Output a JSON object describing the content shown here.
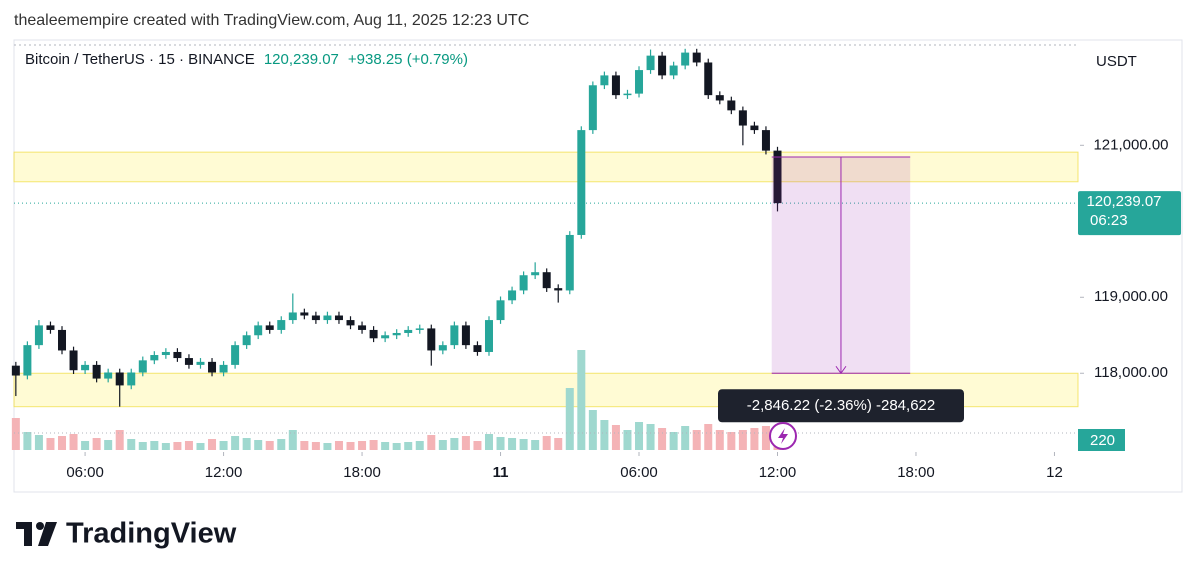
{
  "chart_data": {
    "type": "candlestick",
    "watermark": "thealeemempire created with TradingView.com, Aug 11, 2025 12:23 UTC",
    "symbol": "Bitcoin / TetherUS · 15 · BINANCE",
    "change": "+938.25 (+0.79%)",
    "currency": "USDT",
    "countdown": "06:23",
    "logo": "TradingView",
    "last_price": {
      "value": 120239.07,
      "label": "120,239.07"
    },
    "up_color": "#26a69a",
    "down_color": "#131722",
    "volume_up_color": "#9fd8cf",
    "volume_down_color": "#f4b3b6",
    "x": [
      3,
      3.5,
      4,
      4.5,
      5,
      5.5,
      6,
      6.5,
      7,
      7.5,
      8,
      8.5,
      9,
      9.5,
      10,
      10.5,
      11,
      11.5,
      12,
      12.5,
      13,
      13.5,
      14,
      14.5,
      15,
      15.5,
      16,
      16.5,
      17,
      17.5,
      18,
      18.5,
      19,
      19.5,
      20,
      20.5,
      21,
      21.5,
      22,
      22.5,
      23,
      23.5,
      24,
      24.5,
      25,
      25.5,
      26,
      26.5,
      27,
      27.5,
      28,
      28.5,
      29,
      29.5,
      30,
      30.5,
      31,
      31.5,
      32,
      32.5,
      33,
      33.5,
      34,
      34.5,
      35,
      35.5,
      36
    ],
    "ohlc": [
      [
        118100,
        118150,
        117700,
        117970
      ],
      [
        117970,
        118420,
        117920,
        118370
      ],
      [
        118370,
        118700,
        118320,
        118630
      ],
      [
        118630,
        118680,
        118520,
        118570
      ],
      [
        118570,
        118620,
        118250,
        118300
      ],
      [
        118300,
        118350,
        117990,
        118040
      ],
      [
        118040,
        118160,
        117990,
        118110
      ],
      [
        118110,
        118160,
        117880,
        117930
      ],
      [
        117930,
        118060,
        117880,
        118010
      ],
      [
        118010,
        118060,
        117560,
        117840
      ],
      [
        117840,
        118060,
        117790,
        118010
      ],
      [
        118010,
        118220,
        117960,
        118170
      ],
      [
        118170,
        118290,
        118120,
        118240
      ],
      [
        118240,
        118330,
        118190,
        118280
      ],
      [
        118280,
        118330,
        118150,
        118200
      ],
      [
        118200,
        118250,
        118060,
        118110
      ],
      [
        118110,
        118200,
        118060,
        118150
      ],
      [
        118150,
        118200,
        117960,
        118010
      ],
      [
        118010,
        118160,
        117960,
        118110
      ],
      [
        118110,
        118420,
        118060,
        118370
      ],
      [
        118370,
        118550,
        118320,
        118500
      ],
      [
        118500,
        118680,
        118450,
        118630
      ],
      [
        118630,
        118680,
        118520,
        118570
      ],
      [
        118570,
        118750,
        118520,
        118700
      ],
      [
        118700,
        119050,
        118650,
        118800
      ],
      [
        118800,
        118850,
        118710,
        118760
      ],
      [
        118760,
        118810,
        118650,
        118700
      ],
      [
        118700,
        118810,
        118650,
        118760
      ],
      [
        118760,
        118810,
        118650,
        118700
      ],
      [
        118700,
        118750,
        118580,
        118630
      ],
      [
        118630,
        118680,
        118520,
        118570
      ],
      [
        118570,
        118620,
        118410,
        118460
      ],
      [
        118460,
        118550,
        118410,
        118500
      ],
      [
        118500,
        118580,
        118450,
        118530
      ],
      [
        118530,
        118620,
        118480,
        118570
      ],
      [
        118570,
        118640,
        118520,
        118590
      ],
      [
        118590,
        118640,
        118100,
        118300
      ],
      [
        118300,
        118420,
        118250,
        118370
      ],
      [
        118370,
        118680,
        118320,
        118630
      ],
      [
        118630,
        118680,
        118320,
        118370
      ],
      [
        118370,
        118420,
        118230,
        118280
      ],
      [
        118280,
        118750,
        118230,
        118700
      ],
      [
        118700,
        119010,
        118650,
        118960
      ],
      [
        118960,
        119140,
        118910,
        119090
      ],
      [
        119090,
        119340,
        119040,
        119290
      ],
      [
        119290,
        119460,
        119240,
        119330
      ],
      [
        119330,
        119380,
        119070,
        119120
      ],
      [
        119120,
        119170,
        118930,
        119090
      ],
      [
        119090,
        119870,
        119040,
        119820
      ],
      [
        119820,
        121250,
        119770,
        121200
      ],
      [
        121200,
        121840,
        121150,
        121790
      ],
      [
        121790,
        121970,
        121740,
        121920
      ],
      [
        121920,
        121970,
        121610,
        121660
      ],
      [
        121660,
        121730,
        121610,
        121680
      ],
      [
        121680,
        122040,
        121630,
        121990
      ],
      [
        121990,
        122260,
        121940,
        122180
      ],
      [
        122180,
        122230,
        121870,
        121920
      ],
      [
        121920,
        122100,
        121870,
        122050
      ],
      [
        122050,
        122270,
        122000,
        122220
      ],
      [
        122220,
        122270,
        122040,
        122090
      ],
      [
        122090,
        122140,
        121610,
        121660
      ],
      [
        121660,
        121710,
        121540,
        121590
      ],
      [
        121590,
        121640,
        121410,
        121460
      ],
      [
        121460,
        121510,
        121000,
        121260
      ],
      [
        121260,
        121310,
        121150,
        121200
      ],
      [
        121200,
        121250,
        120880,
        120930
      ],
      [
        120930,
        120980,
        120130,
        120239.07
      ]
    ],
    "volume": [
      320,
      180,
      150,
      120,
      140,
      160,
      90,
      120,
      100,
      200,
      110,
      80,
      90,
      70,
      80,
      90,
      70,
      110,
      90,
      140,
      120,
      100,
      90,
      110,
      200,
      90,
      80,
      70,
      90,
      80,
      90,
      100,
      80,
      70,
      80,
      90,
      150,
      100,
      120,
      140,
      90,
      160,
      130,
      120,
      110,
      100,
      140,
      120,
      620,
      1000,
      400,
      300,
      250,
      200,
      280,
      260,
      220,
      180,
      240,
      200,
      260,
      200,
      180,
      200,
      220,
      240,
      220
    ],
    "xlim": [
      2.92,
      49.02
    ],
    "xticks": [
      {
        "value": 6,
        "label": "06:00"
      },
      {
        "value": 12,
        "label": "12:00"
      },
      {
        "value": 18,
        "label": "18:00"
      },
      {
        "value": 24,
        "label": "11"
      },
      {
        "value": 30,
        "label": "06:00"
      },
      {
        "value": 36,
        "label": "12:00"
      },
      {
        "value": 42,
        "label": "18:00"
      },
      {
        "value": 48,
        "label": "12"
      }
    ],
    "ylim": [
      116990,
      122320
    ],
    "yticks": [
      {
        "value": 118000,
        "label": "118,000.00"
      },
      {
        "value": 119000,
        "label": "119,000.00"
      },
      {
        "value": 121000,
        "label": "121,000.00"
      }
    ],
    "vlim": [
      0,
      1500
    ],
    "zones": [
      [
        120910,
        120520
      ],
      [
        118000,
        117560
      ]
    ],
    "measure": {
      "from": 120846.22,
      "to": 118000,
      "x": [
        35.75,
        41.75
      ],
      "label": "-2,846.22 (-2.36%) -284,622"
    }
  }
}
